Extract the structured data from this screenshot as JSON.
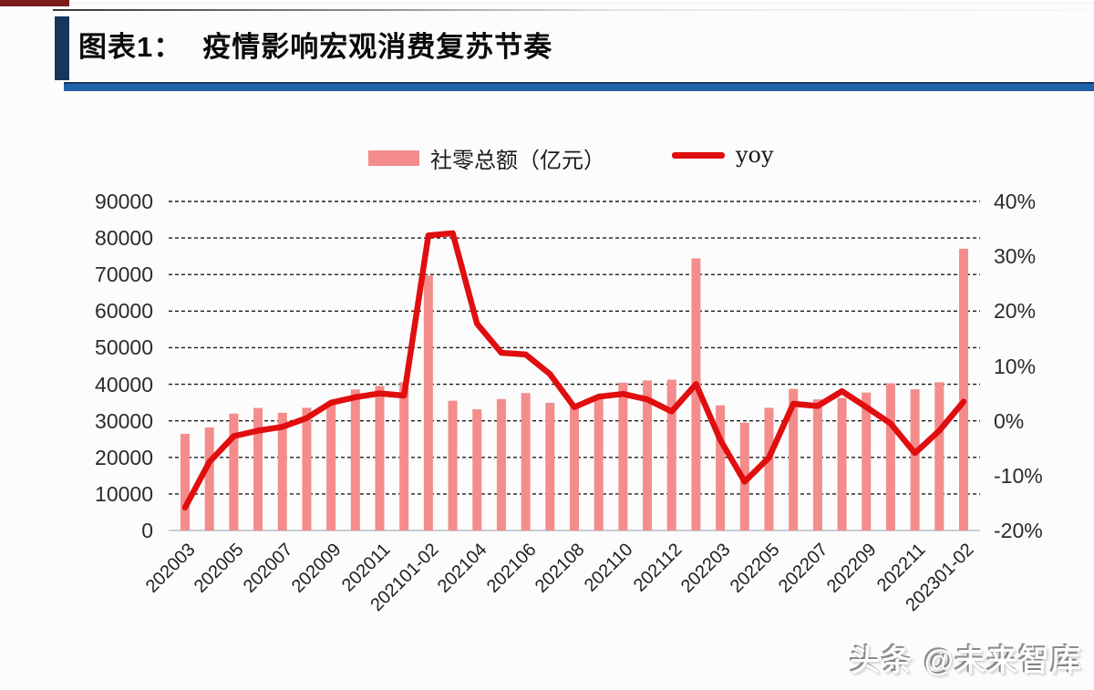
{
  "header": {
    "figure_label": "图表1：",
    "figure_title": "疫情影响宏观消费复苏节奏"
  },
  "legend": [
    {
      "label": "社零总额（亿元）",
      "swatch": "bar",
      "color": "#F48C8C"
    },
    {
      "label": "yoy",
      "swatch": "line",
      "color": "#E00E0E"
    }
  ],
  "watermark": "头条 @未来智库",
  "chart_data": {
    "type": "bar",
    "subtype": "bar+line combo, dual axis",
    "title": "疫情影响宏观消费复苏节奏",
    "grid": "horizontal dashed",
    "legend_position": "top center",
    "categories": [
      "202003",
      "202004",
      "202005",
      "202006",
      "202007",
      "202008",
      "202009",
      "202010",
      "202011",
      "202012",
      "202101-02",
      "202103",
      "202104",
      "202105",
      "202106",
      "202107",
      "202108",
      "202109",
      "202110",
      "202111",
      "202112",
      "202201-02",
      "202203",
      "202204",
      "202205",
      "202206",
      "202207",
      "202208",
      "202209",
      "202210",
      "202211",
      "202212",
      "202301-02"
    ],
    "x_tick_labels": [
      "202003",
      "202005",
      "202007",
      "202009",
      "202011",
      "202101-02",
      "202104",
      "202106",
      "202108",
      "202110",
      "202112",
      "202203",
      "202205",
      "202207",
      "202209",
      "202211",
      "202301-02"
    ],
    "series": [
      {
        "name": "社零总额（亿元）",
        "type": "bar",
        "axis": "left",
        "color": "#F48C8C",
        "values": [
          26450,
          28178,
          31973,
          33526,
          32203,
          33571,
          35295,
          38576,
          39514,
          40566,
          69737,
          35484,
          33153,
          35945,
          37586,
          34925,
          34395,
          36833,
          40454,
          41043,
          41269,
          74426,
          34233,
          29483,
          33547,
          38742,
          35870,
          36258,
          37745,
          40271,
          38615,
          40542,
          77067
        ]
      },
      {
        "name": "yoy",
        "type": "line",
        "axis": "right",
        "color": "#E00E0E",
        "values": [
          -15.8,
          -7.5,
          -2.8,
          -1.8,
          -1.1,
          0.5,
          3.3,
          4.3,
          5.0,
          4.6,
          33.8,
          34.2,
          17.7,
          12.4,
          12.1,
          8.5,
          2.5,
          4.4,
          4.9,
          3.9,
          1.7,
          6.7,
          -3.5,
          -11.1,
          -6.7,
          3.1,
          2.7,
          5.4,
          2.5,
          -0.5,
          -5.9,
          -1.8,
          3.5
        ]
      }
    ],
    "left_axis": {
      "min": 0,
      "max": 90000,
      "ticks": [
        "90000",
        "80000",
        "70000",
        "60000",
        "50000",
        "40000",
        "30000",
        "20000",
        "10000",
        "0"
      ]
    },
    "right_axis": {
      "min": -20,
      "max": 40,
      "unit": "%",
      "ticks": [
        "40%",
        "30%",
        "20%",
        "10%",
        "0%",
        "-10%",
        "-20%"
      ]
    }
  }
}
